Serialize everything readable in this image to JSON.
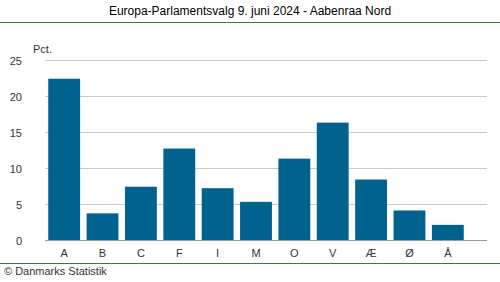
{
  "chart_data": {
    "type": "bar",
    "title": "Europa-Parlamentsvalg 9. juni 2024 - Aabenraa Nord",
    "y_label": "Pct.",
    "source": "© Danmarks Statistik",
    "categories": [
      "A",
      "B",
      "C",
      "F",
      "I",
      "M",
      "O",
      "V",
      "Æ",
      "Ø",
      "Å"
    ],
    "values": [
      22.4,
      3.7,
      7.4,
      12.7,
      7.2,
      5.3,
      11.3,
      16.3,
      8.4,
      4.1,
      2.1
    ],
    "color": "#00628f",
    "ylim": [
      0,
      25
    ],
    "yticks": [
      0,
      5,
      10,
      15,
      20,
      25
    ],
    "grid": true
  }
}
